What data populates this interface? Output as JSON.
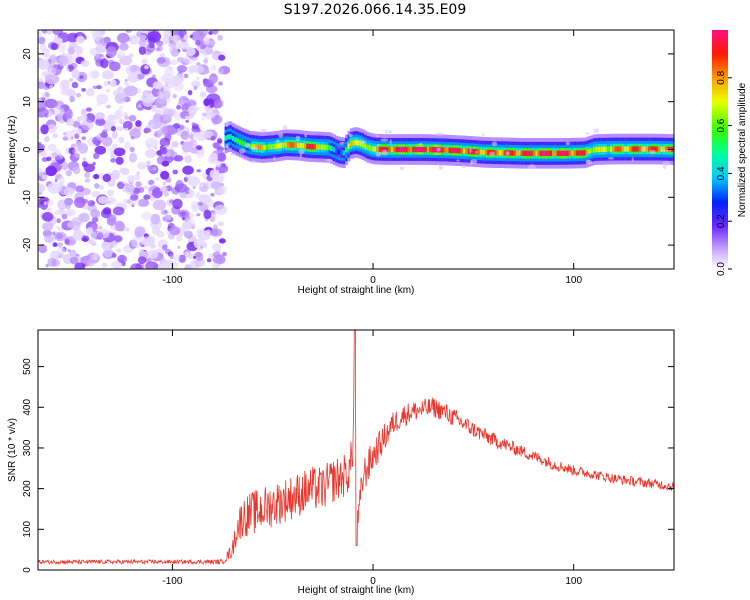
{
  "title": "S197.2026.066.14.35.E09",
  "chart_data": [
    {
      "type": "heatmap",
      "xlabel": "Height of straight line (km)",
      "ylabel": "Frequency (Hz)",
      "xlim": [
        -167,
        150
      ],
      "ylim": [
        -25,
        25
      ],
      "xticks": [
        -100,
        0,
        100
      ],
      "xtick_labels": [
        "-100",
        "0",
        "100"
      ],
      "yticks": [
        20,
        10,
        0,
        -10,
        -20
      ],
      "ytick_labels": [
        "20",
        "10",
        "0",
        "-10",
        "-20"
      ],
      "noise_region_x": [
        -167,
        -74
      ],
      "ridge": {
        "x": [
          -74,
          -72,
          -70,
          -66,
          -62,
          -56,
          -50,
          -44,
          -38,
          -32,
          -26,
          -22,
          -18,
          -15,
          -12,
          -9,
          -6,
          -3,
          0,
          5,
          15,
          25,
          35,
          45,
          55,
          65,
          75,
          85,
          95,
          105,
          110,
          120,
          130,
          140,
          150
        ],
        "y": [
          2.4,
          2.8,
          2.2,
          1.4,
          0.7,
          0.4,
          0.6,
          1.0,
          0.9,
          0.6,
          0.5,
          0.4,
          -0.5,
          -0.7,
          1.2,
          1.5,
          1.1,
          0.4,
          0.1,
          0.0,
          0.0,
          0.0,
          -0.1,
          -0.3,
          -0.6,
          -0.7,
          -0.8,
          -0.8,
          -0.8,
          -0.7,
          0.0,
          0.1,
          0.1,
          0.1,
          0.0
        ],
        "amplitude": [
          0.45,
          0.5,
          0.45,
          0.5,
          0.6,
          0.75,
          0.55,
          0.8,
          0.7,
          0.85,
          0.7,
          0.45,
          0.3,
          0.35,
          0.7,
          0.8,
          0.6,
          0.55,
          0.75,
          0.85,
          0.9,
          0.92,
          0.9,
          0.85,
          0.8,
          0.82,
          0.85,
          0.88,
          0.88,
          0.82,
          0.6,
          0.75,
          0.8,
          0.8,
          0.8
        ]
      },
      "colorbar": {
        "label": "Normalized spectral amplitude",
        "range": [
          0,
          1
        ],
        "ticks": [
          0.0,
          0.2,
          0.4,
          0.6,
          0.8
        ],
        "tick_labels": [
          "0.0",
          "0.2",
          "0.4",
          "0.6",
          "0.8"
        ]
      }
    },
    {
      "type": "line",
      "xlabel": "Height of straight line (km)",
      "ylabel": "SNR (10 * v/v)",
      "xlim": [
        -167,
        150
      ],
      "ylim": [
        0,
        590
      ],
      "xticks": [
        -100,
        0,
        100
      ],
      "xtick_labels": [
        "-100",
        "0",
        "100"
      ],
      "yticks": [
        0,
        100,
        200,
        300,
        400,
        500
      ],
      "ytick_labels": [
        "0",
        "100",
        "200",
        "300",
        "400",
        "500"
      ],
      "series": [
        {
          "name": "SNR",
          "color": "#e8362c",
          "x": [
            -167,
            -150,
            -130,
            -110,
            -90,
            -75,
            -70,
            -68,
            -65,
            -60,
            -55,
            -50,
            -45,
            -40,
            -35,
            -30,
            -25,
            -20,
            -15,
            -12,
            -10,
            -9,
            -8,
            -5,
            0,
            5,
            10,
            15,
            20,
            25,
            30,
            35,
            40,
            45,
            50,
            60,
            70,
            80,
            90,
            100,
            110,
            120,
            130,
            140,
            150
          ],
          "values": [
            20,
            20,
            20,
            20,
            20,
            20,
            50,
            100,
            130,
            140,
            150,
            160,
            170,
            180,
            190,
            200,
            200,
            220,
            230,
            240,
            300,
            590,
            100,
            230,
            280,
            320,
            360,
            380,
            390,
            395,
            400,
            390,
            375,
            360,
            345,
            320,
            300,
            280,
            260,
            245,
            235,
            225,
            218,
            212,
            205
          ],
          "noise": [
            5,
            5,
            5,
            5,
            5,
            6,
            20,
            40,
            50,
            55,
            55,
            55,
            55,
            55,
            55,
            55,
            55,
            55,
            55,
            50,
            45,
            0,
            35,
            45,
            40,
            35,
            30,
            28,
            26,
            25,
            25,
            24,
            23,
            22,
            20,
            18,
            16,
            15,
            14,
            13,
            12,
            12,
            12,
            12,
            12
          ]
        }
      ]
    }
  ]
}
